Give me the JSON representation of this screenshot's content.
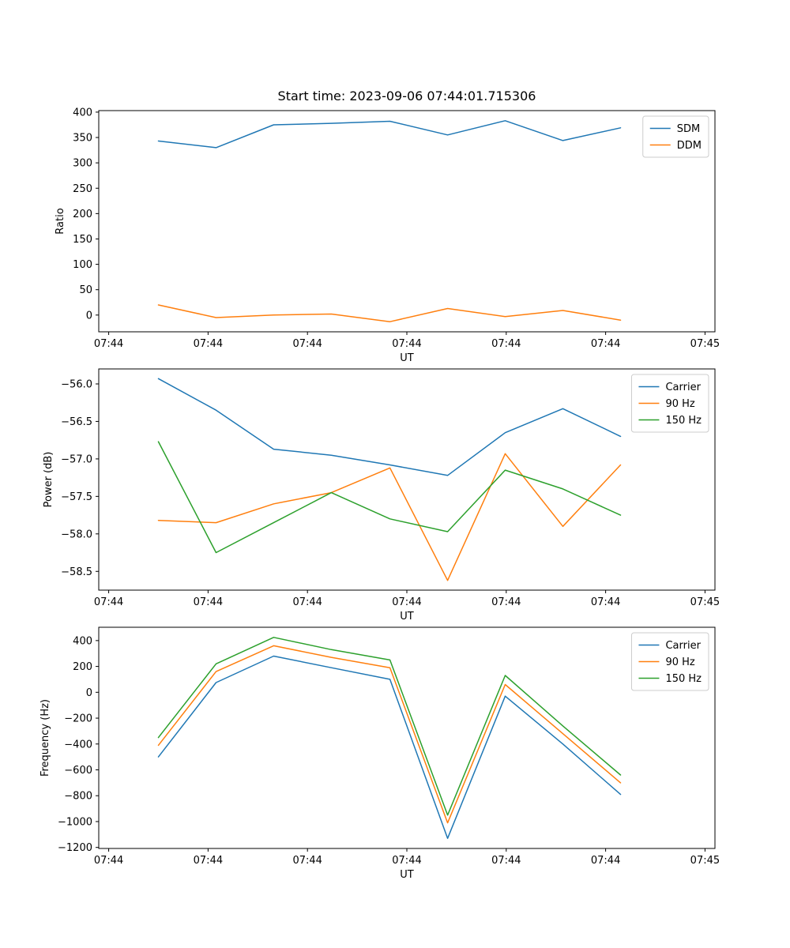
{
  "figure": {
    "title": "Start time: 2023-09-06 07:44:01.715306",
    "background": "#ffffff",
    "accent_colors": {
      "blue": "#1f77b4",
      "orange": "#ff7f0e",
      "green": "#2ca02c"
    }
  },
  "chart_data": [
    {
      "type": "line",
      "name": "ratio",
      "title": "Start time: 2023-09-06 07:44:01.715306",
      "xlabel": "UT",
      "ylabel": "Ratio",
      "grid": false,
      "legend_position": "upper right",
      "xlim_seconds": [
        -1,
        61
      ],
      "x_ticks_seconds": [
        0,
        10,
        20,
        30,
        40,
        50,
        60
      ],
      "x_tick_labels": [
        "07:44",
        "07:44",
        "07:44",
        "07:44",
        "07:44",
        "07:44",
        "07:45"
      ],
      "ylim": [
        -33,
        403
      ],
      "y_ticks": [
        0,
        50,
        100,
        150,
        200,
        250,
        300,
        350,
        400
      ],
      "y_tick_labels": [
        "0",
        "50",
        "100",
        "150",
        "200",
        "250",
        "300",
        "350",
        "400"
      ],
      "x_seconds": [
        5.0,
        10.8,
        16.6,
        22.4,
        28.3,
        34.1,
        39.9,
        45.7,
        51.5
      ],
      "series": [
        {
          "name": "SDM",
          "color": "#1f77b4",
          "values": [
            343,
            330,
            375,
            378,
            382,
            355,
            383,
            344,
            369
          ]
        },
        {
          "name": "DDM",
          "color": "#ff7f0e",
          "values": [
            20,
            -5,
            0,
            2,
            -13,
            13,
            -3,
            9,
            -10
          ]
        }
      ]
    },
    {
      "type": "line",
      "name": "power",
      "xlabel": "UT",
      "ylabel": "Power (dB)",
      "grid": false,
      "legend_position": "upper right",
      "xlim_seconds": [
        -1,
        61
      ],
      "x_ticks_seconds": [
        0,
        10,
        20,
        30,
        40,
        50,
        60
      ],
      "x_tick_labels": [
        "07:44",
        "07:44",
        "07:44",
        "07:44",
        "07:44",
        "07:44",
        "07:45"
      ],
      "ylim": [
        -58.75,
        -55.8
      ],
      "y_ticks": [
        -58.5,
        -58.0,
        -57.5,
        -57.0,
        -56.5,
        -56.0
      ],
      "y_tick_labels": [
        "−58.5",
        "−58.0",
        "−57.5",
        "−57.0",
        "−56.5",
        "−56.0"
      ],
      "x_seconds": [
        5.0,
        10.8,
        16.6,
        22.4,
        28.3,
        34.1,
        39.9,
        45.7,
        51.5
      ],
      "series": [
        {
          "name": "Carrier",
          "color": "#1f77b4",
          "values": [
            -55.93,
            -56.35,
            -56.87,
            -56.95,
            -57.08,
            -57.22,
            -56.65,
            -56.33,
            -56.7
          ]
        },
        {
          "name": "90 Hz",
          "color": "#ff7f0e",
          "values": [
            -57.82,
            -57.85,
            -57.6,
            -57.45,
            -57.12,
            -58.62,
            -56.93,
            -57.9,
            -57.08
          ]
        },
        {
          "name": "150 Hz",
          "color": "#2ca02c",
          "values": [
            -56.77,
            -58.25,
            -57.85,
            -57.45,
            -57.8,
            -57.97,
            -57.15,
            -57.4,
            -57.75
          ]
        }
      ]
    },
    {
      "type": "line",
      "name": "frequency",
      "xlabel": "UT",
      "ylabel": "Frequency (Hz)",
      "grid": false,
      "legend_position": "upper right",
      "xlim_seconds": [
        -1,
        61
      ],
      "x_ticks_seconds": [
        0,
        10,
        20,
        30,
        40,
        50,
        60
      ],
      "x_tick_labels": [
        "07:44",
        "07:44",
        "07:44",
        "07:44",
        "07:44",
        "07:44",
        "07:45"
      ],
      "ylim": [
        -1208,
        503
      ],
      "y_ticks": [
        -1200,
        -1000,
        -800,
        -600,
        -400,
        -200,
        0,
        200,
        400
      ],
      "y_tick_labels": [
        "−1200",
        "−1000",
        "−800",
        "−600",
        "−400",
        "−200",
        "0",
        "200",
        "400"
      ],
      "x_seconds": [
        5.0,
        10.8,
        16.6,
        22.4,
        28.3,
        34.1,
        39.9,
        45.7,
        51.5
      ],
      "series": [
        {
          "name": "Carrier",
          "color": "#1f77b4",
          "values": [
            -500,
            75,
            280,
            190,
            100,
            -1130,
            -30,
            -400,
            -790
          ]
        },
        {
          "name": "90 Hz",
          "color": "#ff7f0e",
          "values": [
            -410,
            160,
            360,
            270,
            190,
            -1010,
            60,
            -320,
            -700
          ]
        },
        {
          "name": "150 Hz",
          "color": "#2ca02c",
          "values": [
            -350,
            220,
            425,
            330,
            250,
            -950,
            130,
            -260,
            -640
          ]
        }
      ]
    }
  ]
}
